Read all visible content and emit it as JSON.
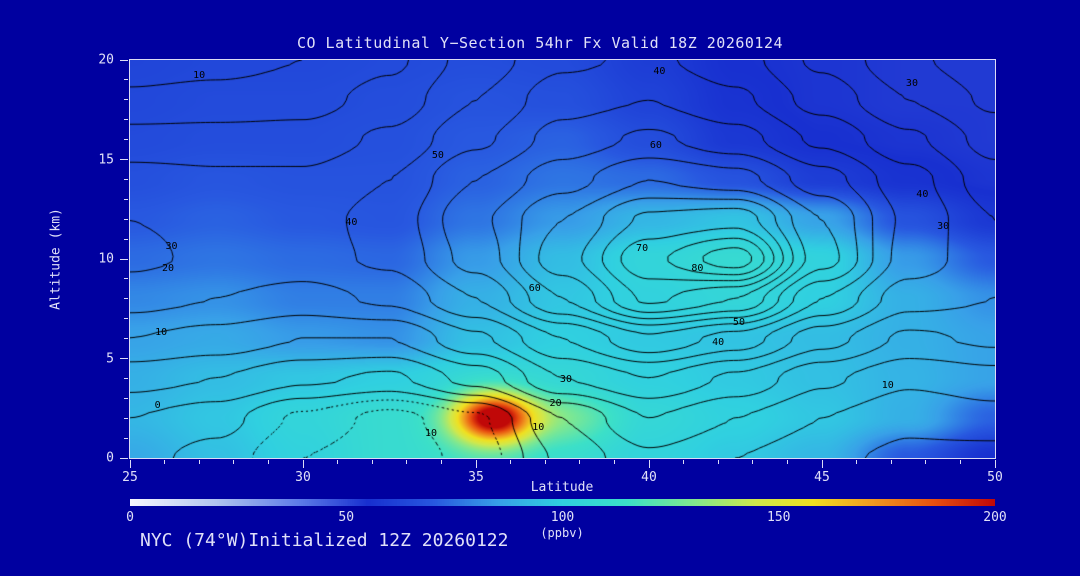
{
  "page": {
    "background": "#0000a0",
    "text_color": "#e0e0f8",
    "frame_color": "#dcdcf5",
    "contour_line_color": "#000000",
    "footer": "NYC (74°W)Initialized 12Z 20260122"
  },
  "chart_data": {
    "type": "heatmap",
    "title": "CO Latitudinal Y−Section 54hr  Fx Valid 18Z 20260124",
    "xlabel": "Latitude",
    "ylabel": "Altitude (km)",
    "xlim": [
      25,
      50
    ],
    "ylim": [
      0,
      20
    ],
    "x_ticks": [
      25,
      30,
      35,
      40,
      45,
      50
    ],
    "y_ticks": [
      0,
      5,
      10,
      15,
      20
    ],
    "lats": [
      25,
      27.5,
      30,
      32.5,
      35,
      37.5,
      40,
      42.5,
      45,
      47.5,
      50
    ],
    "alts": [
      0,
      2,
      4,
      6,
      8,
      10,
      12,
      14,
      16,
      18,
      20
    ],
    "fill_grid": [
      [
        88,
        95,
        102,
        110,
        115,
        112,
        103,
        98,
        92,
        70,
        55
      ],
      [
        92,
        97,
        104,
        110,
        118,
        128,
        106,
        101,
        97,
        90,
        72
      ],
      [
        90,
        94,
        97,
        100,
        105,
        106,
        101,
        98,
        95,
        91,
        86
      ],
      [
        86,
        88,
        84,
        82,
        95,
        100,
        98,
        96,
        94,
        90,
        86
      ],
      [
        80,
        82,
        78,
        78,
        90,
        97,
        102,
        105,
        100,
        90,
        82
      ],
      [
        74,
        76,
        74,
        73,
        84,
        94,
        104,
        109,
        102,
        84,
        70
      ],
      [
        70,
        72,
        70,
        69,
        76,
        84,
        92,
        96,
        86,
        68,
        58
      ],
      [
        67,
        69,
        68,
        68,
        72,
        76,
        74,
        68,
        60,
        56,
        54
      ],
      [
        65,
        66,
        66,
        67,
        70,
        72,
        66,
        58,
        55,
        54,
        53
      ],
      [
        64,
        65,
        65,
        66,
        68,
        67,
        62,
        56,
        54,
        53,
        53
      ],
      [
        63,
        64,
        64,
        65,
        66,
        65,
        60,
        55,
        54,
        53,
        53
      ]
    ],
    "hotspot": {
      "lat": 35.5,
      "alt": 2.0,
      "amp": 95,
      "sigma_lat": 0.8,
      "sigma_alt": 0.9
    },
    "line_grid": [
      [
        2,
        -2,
        -10,
        -14,
        -8,
        6,
        14,
        10,
        6,
        4,
        3
      ],
      [
        5,
        2,
        -6,
        -12,
        -6,
        10,
        20,
        15,
        10,
        6,
        8
      ],
      [
        12,
        10,
        6,
        4,
        12,
        25,
        30,
        24,
        16,
        11,
        13
      ],
      [
        20,
        18,
        15,
        15,
        24,
        35,
        44,
        38,
        27,
        19,
        21
      ],
      [
        27,
        25,
        23,
        26,
        35,
        50,
        66,
        60,
        40,
        27,
        25
      ],
      [
        31,
        29,
        28,
        31,
        42,
        58,
        74,
        83,
        52,
        33,
        26
      ],
      [
        30,
        29,
        28,
        32,
        44,
        55,
        66,
        68,
        50,
        34,
        25
      ],
      [
        27,
        26,
        26,
        30,
        40,
        48,
        55,
        52,
        42,
        32,
        22
      ],
      [
        22,
        22,
        22,
        26,
        34,
        42,
        46,
        42,
        34,
        26,
        18
      ],
      [
        16,
        17,
        18,
        22,
        30,
        38,
        40,
        36,
        28,
        20,
        14
      ],
      [
        12,
        13,
        15,
        19,
        27,
        34,
        36,
        32,
        24,
        16,
        11
      ]
    ],
    "contour_interval": 5,
    "contour_levels": [
      -15,
      -10,
      -5,
      0,
      5,
      10,
      15,
      20,
      25,
      30,
      35,
      40,
      45,
      50,
      55,
      60,
      65,
      70,
      75,
      80
    ],
    "contour_labels": [
      {
        "text": "10",
        "lat": 27.0,
        "alt": 19.2
      },
      {
        "text": "40",
        "lat": 40.3,
        "alt": 19.4
      },
      {
        "text": "30",
        "lat": 47.6,
        "alt": 18.8
      },
      {
        "text": "50",
        "lat": 33.9,
        "alt": 15.2
      },
      {
        "text": "60",
        "lat": 40.2,
        "alt": 15.7
      },
      {
        "text": "30",
        "lat": 26.2,
        "alt": 10.6
      },
      {
        "text": "20",
        "lat": 26.1,
        "alt": 9.5
      },
      {
        "text": "40",
        "lat": 31.4,
        "alt": 11.8
      },
      {
        "text": "10",
        "lat": 25.9,
        "alt": 6.3
      },
      {
        "text": "0",
        "lat": 25.8,
        "alt": 2.6
      },
      {
        "text": "60",
        "lat": 36.7,
        "alt": 8.5
      },
      {
        "text": "70",
        "lat": 39.8,
        "alt": 10.5
      },
      {
        "text": "80",
        "lat": 41.4,
        "alt": 9.5
      },
      {
        "text": "50",
        "lat": 42.6,
        "alt": 6.8
      },
      {
        "text": "40",
        "lat": 42.0,
        "alt": 5.8
      },
      {
        "text": "30",
        "lat": 37.6,
        "alt": 3.9
      },
      {
        "text": "20",
        "lat": 37.3,
        "alt": 2.7
      },
      {
        "text": "10",
        "lat": 36.8,
        "alt": 1.5
      },
      {
        "text": "10",
        "lat": 33.7,
        "alt": 1.2
      },
      {
        "text": "10",
        "lat": 46.9,
        "alt": 3.6
      },
      {
        "text": "30",
        "lat": 48.5,
        "alt": 11.6
      },
      {
        "text": "40",
        "lat": 47.9,
        "alt": 13.2
      }
    ],
    "colorbar": {
      "min": 0,
      "max": 200,
      "ticks": [
        0,
        50,
        100,
        150,
        200
      ],
      "units": "(ppbv)",
      "stops": [
        [
          0,
          "#f8f8ff"
        ],
        [
          20,
          "#b0c4f0"
        ],
        [
          40,
          "#5a78e8"
        ],
        [
          55,
          "#1830d0"
        ],
        [
          70,
          "#2858e0"
        ],
        [
          85,
          "#38a0e8"
        ],
        [
          100,
          "#30d0e0"
        ],
        [
          115,
          "#3ce0c8"
        ],
        [
          130,
          "#80e890"
        ],
        [
          145,
          "#d0e84c"
        ],
        [
          158,
          "#f0e020"
        ],
        [
          172,
          "#f09820"
        ],
        [
          186,
          "#e85010"
        ],
        [
          200,
          "#c00808"
        ]
      ]
    }
  }
}
